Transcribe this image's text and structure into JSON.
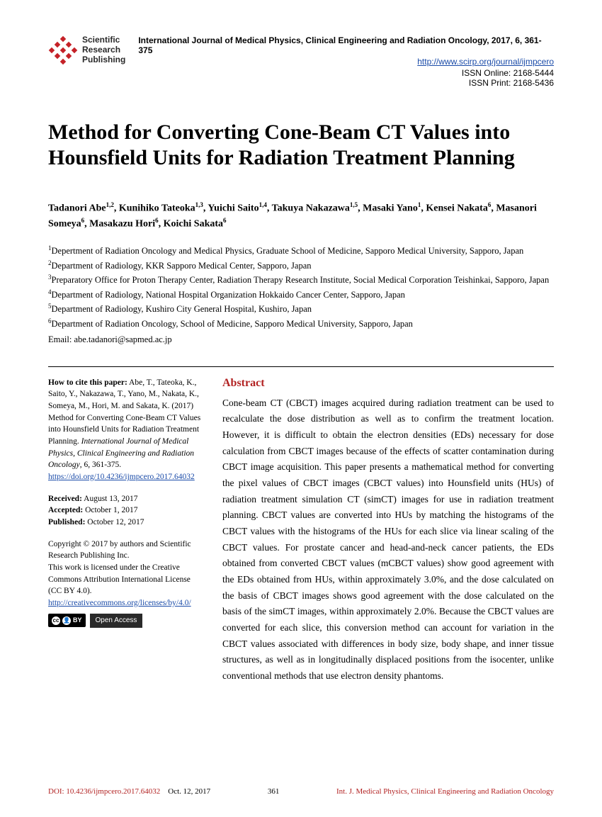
{
  "header": {
    "publisher_name_line1": "Scientific",
    "publisher_name_line2": "Research",
    "publisher_name_line3": "Publishing",
    "journal_info": "International Journal of Medical Physics, Clinical Engineering and Radiation Oncology, 2017, 6, 361-375",
    "journal_url": "http://www.scirp.org/journal/ijmpcero",
    "issn_online": "ISSN Online: 2168-5444",
    "issn_print": "ISSN Print: 2168-5436",
    "logo_color": "#c52127"
  },
  "title": "Method for Converting Cone-Beam CT Values into Hounsfield Units for Radiation Treatment Planning",
  "authors_html": "Tadanori Abe<sup>1,2</sup>, Kunihiko Tateoka<sup>1,3</sup>, Yuichi Saito<sup>1,4</sup>, Takuya Nakazawa<sup>1,5</sup>, Masaki Yano<sup>1</sup>, Kensei Nakata<sup>6</sup>, Masanori Someya<sup>6</sup>, Masakazu Hori<sup>6</sup>, Koichi Sakata<sup>6</sup>",
  "affiliations": [
    "<sup>1</sup>Depertment of Radiation Oncology and Medical Physics, Graduate School of Medicine, Sapporo Medical University, Sapporo, Japan",
    "<sup>2</sup>Department of Radiology, KKR Sapporo Medical Center, Sapporo, Japan",
    "<sup>3</sup>Preparatory Office for Proton Therapy Center, Radiation Therapy Research Institute, Social Medical Corporation Teishinkai, Sapporo, Japan",
    "<sup>4</sup>Department of Radiology, National Hospital Organization Hokkaido Cancer Center, Sapporo, Japan",
    "<sup>5</sup>Department of Radiology, Kushiro City General Hospital, Kushiro, Japan",
    "<sup>6</sup>Department of Radiation Oncology, School of Medicine, Sapporo Medical University, Sapporo, Japan"
  ],
  "email_label": "Email:",
  "email_value": " abe.tadanori@sapmed.ac.jp",
  "sidebar": {
    "cite_label": "How to cite this paper:",
    "cite_text": " Abe, T., Tateoka, K., Saito, Y., Nakazawa, T., Yano, M., Nakata, K., Someya, M., Hori, M. and Sakata, K. (2017) Method for Converting Cone-Beam CT Values into Hounsfield Units for Radiation Treatment Planning. ",
    "cite_journal_italic": "International Journal of Medical Physics, Clinical Engineering and Radiation Oncology",
    "cite_suffix": ", 6, 361-375.",
    "doi_link": "https://doi.org/10.4236/ijmpcero.2017.64032",
    "received_label": "Received:",
    "received_value": " August 13, 2017",
    "accepted_label": "Accepted:",
    "accepted_value": " October 1, 2017",
    "published_label": "Published:",
    "published_value": " October 12, 2017",
    "copyright_text": "Copyright © 2017 by authors and Scientific Research Publishing Inc.",
    "license_text": "This work is licensed under the Creative Commons Attribution International License (CC BY 4.0).",
    "cc_link": "http://creativecommons.org/licenses/by/4.0/",
    "cc_badge_text": "cc",
    "by_badge_text": "BY",
    "oa_badge_text": "Open Access"
  },
  "abstract": {
    "heading": "Abstract",
    "text": "Cone-beam CT (CBCT) images acquired during radiation treatment can be used to recalculate the dose distribution as well as to confirm the treatment location. However, it is difficult to obtain the electron densities (EDs) necessary for dose calculation from CBCT images because of the effects of scatter contamination during CBCT image acquisition. This paper presents a mathematical method for converting the pixel values of CBCT images (CBCT values) into Hounsfield units (HUs) of radiation treatment simulation CT (simCT) images for use in radiation treatment planning. CBCT values are converted into HUs by matching the histograms of the CBCT values with the histograms of the HUs for each slice via linear scaling of the CBCT values. For prostate cancer and head-and-neck cancer patients, the EDs obtained from converted CBCT values (mCBCT values) show good agreement with the EDs obtained from HUs, within approximately 3.0%, and the dose calculated on the basis of CBCT images shows good agreement with the dose calculated on the basis of the simCT images, within approximately 2.0%. Because the CBCT values are converted for each slice, this conversion method can account for variation in the CBCT values associated with differences in body size, body shape, and inner tissue structures, as well as in longitudinally displaced positions from the isocenter, unlike conventional methods that use electron density phantoms."
  },
  "footer": {
    "doi": "DOI: 10.4236/ijmpcero.2017.64032",
    "date": "Oct. 12, 2017",
    "page": "361",
    "journal_short": "Int. J. Medical Physics, Clinical Engineering and Radiation Oncology"
  },
  "colors": {
    "accent_red": "#b22222",
    "link_blue": "#1a4ba8",
    "text_black": "#000000"
  }
}
